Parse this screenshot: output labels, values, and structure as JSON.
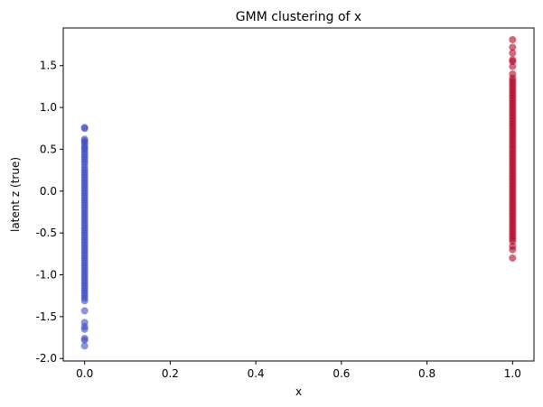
{
  "chart_data": {
    "type": "scatter",
    "title": "GMM clustering of x",
    "xlabel": "x",
    "ylabel": "latent z (true)",
    "xlim": [
      -0.05,
      1.05
    ],
    "ylim": [
      -2.03,
      1.95
    ],
    "xticks": [
      "0.0",
      "0.2",
      "0.4",
      "0.6",
      "0.8",
      "1.0"
    ],
    "yticks": [
      "-2.0",
      "-1.5",
      "-1.0",
      "-0.5",
      "0.0",
      "0.5",
      "1.0",
      "1.5"
    ],
    "grid": false,
    "legend": "none",
    "series": [
      {
        "color": "#3b4cc0",
        "x": 0.0,
        "y": [
          0.76,
          0.75,
          0.62,
          0.6,
          0.58,
          0.55,
          0.52,
          0.5,
          0.47,
          0.44,
          0.41,
          0.38,
          0.35,
          0.32,
          0.28,
          0.25,
          0.22,
          0.19,
          0.16,
          0.13,
          0.1,
          0.07,
          0.04,
          0.01,
          -0.02,
          -0.05,
          -0.08,
          -0.11,
          -0.14,
          -0.17,
          -0.2,
          -0.23,
          -0.26,
          -0.29,
          -0.32,
          -0.35,
          -0.38,
          -0.41,
          -0.44,
          -0.47,
          -0.5,
          -0.53,
          -0.56,
          -0.59,
          -0.62,
          -0.65,
          -0.68,
          -0.71,
          -0.74,
          -0.77,
          -0.8,
          -0.83,
          -0.86,
          -0.89,
          -0.92,
          -0.95,
          -0.98,
          -1.01,
          -1.04,
          -1.07,
          -1.1,
          -1.13,
          -1.16,
          -1.19,
          -1.22,
          -1.25,
          -1.28,
          -1.31,
          -1.43,
          -1.57,
          -1.62,
          -1.65,
          -1.76,
          -1.78,
          -1.85
        ]
      },
      {
        "color": "#b40426",
        "x": 1.0,
        "y": [
          1.81,
          1.72,
          1.65,
          1.57,
          1.55,
          1.49,
          1.4,
          1.35,
          1.32,
          1.29,
          1.26,
          1.23,
          1.2,
          1.17,
          1.14,
          1.11,
          1.08,
          1.05,
          1.02,
          0.99,
          0.96,
          0.93,
          0.9,
          0.87,
          0.84,
          0.81,
          0.78,
          0.75,
          0.72,
          0.69,
          0.66,
          0.63,
          0.6,
          0.57,
          0.54,
          0.51,
          0.48,
          0.45,
          0.42,
          0.39,
          0.36,
          0.33,
          0.3,
          0.27,
          0.24,
          0.21,
          0.18,
          0.15,
          0.12,
          0.09,
          0.06,
          0.03,
          0.0,
          -0.03,
          -0.06,
          -0.09,
          -0.12,
          -0.15,
          -0.18,
          -0.21,
          -0.24,
          -0.27,
          -0.3,
          -0.33,
          -0.36,
          -0.39,
          -0.42,
          -0.45,
          -0.48,
          -0.51,
          -0.54,
          -0.57,
          -0.6,
          -0.66,
          -0.7,
          -0.8
        ]
      }
    ]
  }
}
